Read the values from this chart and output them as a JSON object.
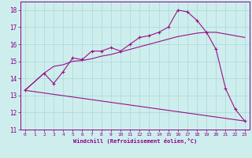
{
  "xlabel": "Windchill (Refroidissement éolien,°C)",
  "background_color": "#ceeeed",
  "line_color": "#991188",
  "xlim": [
    -0.5,
    23.5
  ],
  "ylim": [
    11,
    18.5
  ],
  "xticks": [
    0,
    1,
    2,
    3,
    4,
    5,
    6,
    7,
    8,
    9,
    10,
    11,
    12,
    13,
    14,
    15,
    16,
    17,
    18,
    19,
    20,
    21,
    22,
    23
  ],
  "yticks": [
    11,
    12,
    13,
    14,
    15,
    16,
    17,
    18
  ],
  "grid_color": "#a8d8d8",
  "line1_x": [
    0,
    2,
    3,
    4,
    5,
    6,
    7,
    8,
    9,
    10,
    11,
    12,
    13,
    14,
    15,
    16,
    17,
    18,
    19,
    20,
    21,
    22,
    23
  ],
  "line1_y": [
    13.3,
    14.3,
    13.7,
    14.4,
    15.2,
    15.1,
    15.6,
    15.6,
    15.8,
    15.6,
    16.0,
    16.4,
    16.5,
    16.7,
    17.0,
    18.0,
    17.9,
    17.4,
    16.7,
    15.7,
    13.4,
    12.2,
    11.5
  ],
  "line2_x": [
    0,
    2,
    3,
    4,
    5,
    6,
    7,
    8,
    9,
    10,
    11,
    12,
    13,
    14,
    15,
    16,
    17,
    18,
    19,
    20,
    21,
    22,
    23
  ],
  "line2_y": [
    13.3,
    14.3,
    14.7,
    14.8,
    15.0,
    15.05,
    15.15,
    15.3,
    15.4,
    15.55,
    15.7,
    15.85,
    16.0,
    16.15,
    16.3,
    16.45,
    16.55,
    16.65,
    16.7,
    16.7,
    16.6,
    16.5,
    16.4
  ],
  "line3_x": [
    0,
    23
  ],
  "line3_y": [
    13.3,
    11.5
  ]
}
